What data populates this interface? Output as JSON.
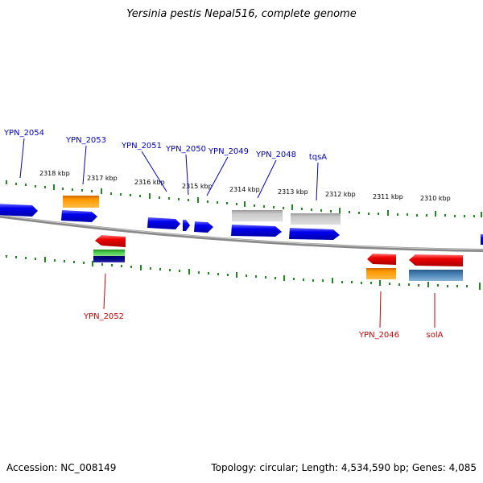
{
  "title": "Yersinia pestis Nepal516, complete genome",
  "footer": {
    "accession": "Accession: NC_008149",
    "summary": "Topology: circular; Length: 4,534,590 bp; Genes: 4,085"
  },
  "ticks": {
    "outer_labels": [
      "2318 kbp",
      "2317 kbp",
      "2316 kbp",
      "2315 kbp",
      "2314 kbp",
      "2313 kbp",
      "2312 kbp",
      "2311 kbp",
      "2310 kbp"
    ]
  },
  "genes": {
    "forward": [
      "YPN_2054",
      "YPN_2053",
      "YPN_2051",
      "YPN_2050",
      "YPN_2049",
      "YPN_2048",
      "tqsA"
    ],
    "reverse": [
      "YPN_2052",
      "YPN_2046",
      "solA"
    ]
  },
  "colors": {
    "forward_label": "#0000cc",
    "reverse_label": "#cc0000",
    "cds": "#0000ee",
    "rev_cds": "#ee0000",
    "cog_orange": "#ff9900",
    "cog_grey": "#bbbbbb",
    "cog_green": "#33bb33",
    "cog_steel": "#4682b4",
    "backbone": "#888888",
    "tick": "#228822"
  }
}
